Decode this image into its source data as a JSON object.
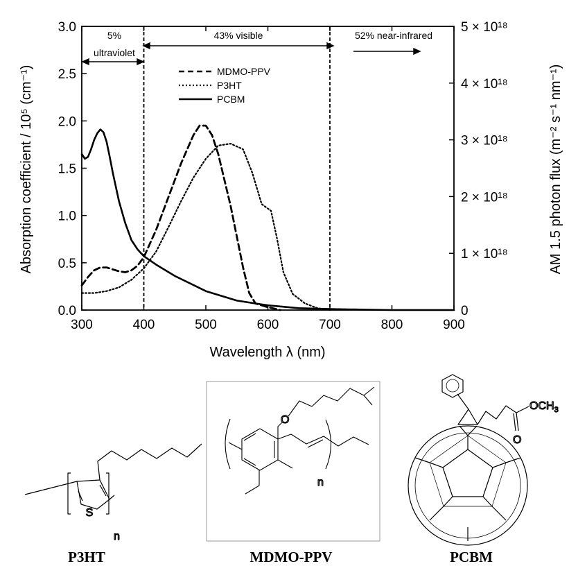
{
  "chart_data": {
    "type": "line",
    "xlabel": "Wavelength λ (nm)",
    "ylabel": "Absorption coefficient / 10⁵ (cm⁻¹)",
    "y2label": "AM 1.5 photon flux (m⁻² s⁻¹ nm⁻¹)",
    "xlim": [
      300,
      900
    ],
    "ylim": [
      0,
      3.0
    ],
    "y2lim": [
      0,
      5e+18
    ],
    "x_ticks": [
      "300",
      "400",
      "500",
      "600",
      "700",
      "800",
      "900"
    ],
    "y_ticks": [
      "0.0",
      "0.5",
      "1.0",
      "1.5",
      "2.0",
      "2.5",
      "3.0"
    ],
    "y2_ticks": [
      {
        "value": 0,
        "label": "0"
      },
      {
        "value": 1e+18,
        "label": "1 × 10¹⁸"
      },
      {
        "value": 2e+18,
        "label": "2 × 10¹⁸"
      },
      {
        "value": 3e+18,
        "label": "3 × 10¹⁸"
      },
      {
        "value": 4e+18,
        "label": "4 × 10¹⁸"
      },
      {
        "value": 5e+18,
        "label": "5 × 10¹⁸"
      }
    ],
    "grid": false,
    "legend_position": "top-center",
    "series": [
      {
        "name": "MDMO-PPV",
        "style": "dashed",
        "x": [
          300,
          310,
          320,
          330,
          340,
          350,
          360,
          370,
          380,
          390,
          400,
          420,
          440,
          460,
          480,
          490,
          500,
          510,
          520,
          540,
          560,
          570,
          580,
          600,
          620
        ],
        "y": [
          0.26,
          0.35,
          0.42,
          0.45,
          0.45,
          0.43,
          0.41,
          0.4,
          0.42,
          0.47,
          0.56,
          0.85,
          1.2,
          1.55,
          1.85,
          1.95,
          1.95,
          1.85,
          1.65,
          1.1,
          0.45,
          0.18,
          0.07,
          0.03,
          0.0
        ]
      },
      {
        "name": "P3HT",
        "style": "dotted",
        "x": [
          300,
          320,
          340,
          360,
          380,
          400,
          420,
          440,
          460,
          480,
          500,
          520,
          540,
          560,
          575,
          590,
          605,
          615,
          625,
          640,
          660,
          680,
          700
        ],
        "y": [
          0.18,
          0.18,
          0.2,
          0.24,
          0.32,
          0.44,
          0.62,
          0.88,
          1.15,
          1.4,
          1.6,
          1.74,
          1.76,
          1.7,
          1.45,
          1.12,
          1.05,
          0.75,
          0.4,
          0.17,
          0.07,
          0.02,
          0.0
        ]
      },
      {
        "name": "PCBM",
        "style": "solid",
        "x": [
          300,
          305,
          310,
          315,
          320,
          325,
          330,
          335,
          340,
          345,
          350,
          360,
          370,
          380,
          390,
          400,
          420,
          450,
          500,
          550,
          600,
          650,
          700,
          750,
          800,
          850,
          900
        ],
        "y": [
          1.65,
          1.6,
          1.62,
          1.7,
          1.8,
          1.87,
          1.91,
          1.88,
          1.78,
          1.62,
          1.45,
          1.15,
          0.92,
          0.74,
          0.64,
          0.57,
          0.48,
          0.36,
          0.2,
          0.1,
          0.05,
          0.02,
          0.01,
          0.005,
          0.0,
          0.0,
          0.0
        ]
      }
    ],
    "vertical_lines": [
      400,
      700
    ],
    "annotations": [
      {
        "text": "5%",
        "x": 337
      },
      {
        "text": "ultraviolet",
        "x": 337
      },
      {
        "text": "43% visible",
        "x": 537
      },
      {
        "text": "52% near-infrared",
        "x": 770
      }
    ]
  },
  "structures": {
    "labels": {
      "p3ht": "P3HT",
      "mdmo": "MDMO-PPV",
      "pcbm": "PCBM"
    },
    "atoms": {
      "sulfur": "S",
      "n_p3ht": "n",
      "n_mdmo": "n",
      "oxygen_ether": "O",
      "oxygen_carbonyl": "O",
      "ester_o": "OCH",
      "ester_sub": "3"
    }
  }
}
